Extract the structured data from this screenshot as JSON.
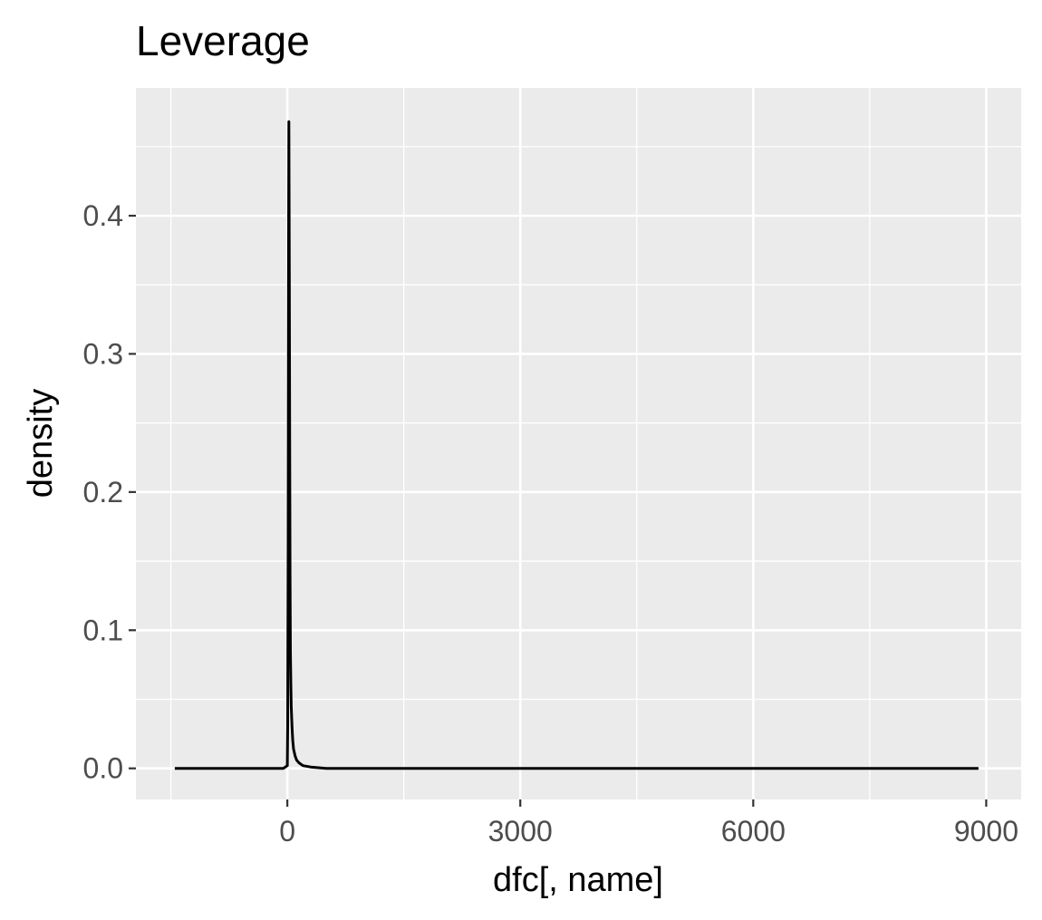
{
  "chart_data": {
    "type": "line",
    "title": "Leverage",
    "xlabel": "dfc[, name]",
    "ylabel": "density",
    "xlim": [
      -1950,
      9450
    ],
    "ylim": [
      -0.0225,
      0.4925
    ],
    "x_ticks": [
      0,
      3000,
      6000,
      9000
    ],
    "x_tick_labels": [
      "0",
      "3000",
      "6000",
      "9000"
    ],
    "x_minor_ticks": [
      -1500,
      1500,
      4500,
      7500
    ],
    "y_ticks": [
      0.0,
      0.1,
      0.2,
      0.3,
      0.4
    ],
    "y_tick_labels": [
      "0.0",
      "0.1",
      "0.2",
      "0.3",
      "0.4"
    ],
    "y_minor_ticks": [
      0.05,
      0.15,
      0.25,
      0.35,
      0.45
    ],
    "grid": true,
    "legend": "none",
    "colors": {
      "panel": "#ebebeb",
      "grid": "#ffffff",
      "line": "#000000",
      "tick": "#333333"
    },
    "series": [
      {
        "x": [
          -1450,
          -500,
          -200,
          -50,
          0,
          5,
          10,
          15,
          20,
          25,
          30,
          35,
          40,
          45,
          50,
          60,
          70,
          80,
          100,
          120,
          150,
          200,
          300,
          500,
          1000,
          3000,
          6000,
          8900
        ],
        "y": [
          0.0,
          0.0,
          0.0,
          0.0,
          0.002,
          0.03,
          0.16,
          0.35,
          0.468,
          0.36,
          0.24,
          0.14,
          0.085,
          0.06,
          0.045,
          0.03,
          0.02,
          0.014,
          0.009,
          0.006,
          0.004,
          0.002,
          0.001,
          0.0,
          0.0,
          0.0,
          0.0,
          0.0
        ]
      }
    ]
  }
}
